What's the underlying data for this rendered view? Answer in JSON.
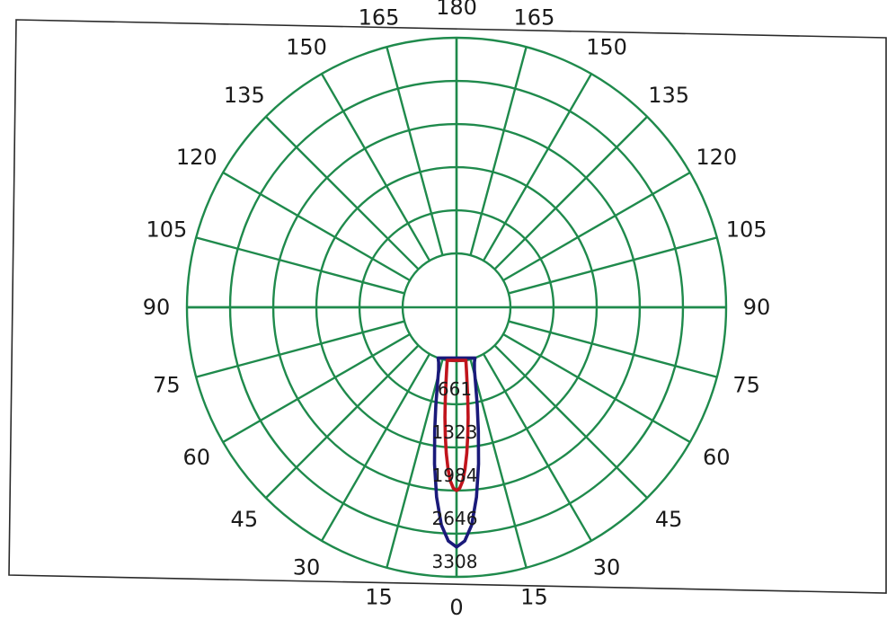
{
  "chart_data": {
    "type": "polar",
    "title": "",
    "angle_labels_left": [
      "0",
      "15",
      "30",
      "45",
      "60",
      "75",
      "90",
      "105",
      "120",
      "135",
      "150",
      "165",
      "180"
    ],
    "angle_labels_right": [
      "15",
      "30",
      "45",
      "60",
      "75",
      "90",
      "105",
      "120",
      "135",
      "150",
      "165"
    ],
    "radial_ticks": [
      "661",
      "1323",
      "1984",
      "2646",
      "3308"
    ],
    "radial_values": [
      661,
      1323,
      1984,
      2646,
      3308
    ],
    "rmax": 3308,
    "grid": true,
    "series": [
      {
        "color": "#1a1a7a",
        "angles": [
          0,
          2,
          4,
          6,
          8,
          10,
          12,
          14,
          16,
          18,
          20
        ],
        "values": [
          2850,
          2760,
          2520,
          2100,
          1600,
          1100,
          700,
          380,
          170,
          60,
          0
        ]
      },
      {
        "color": "#c0141c",
        "angles": [
          0,
          1,
          2,
          3,
          4,
          5,
          6,
          7,
          8,
          9,
          10
        ],
        "values": [
          1984,
          1950,
          1840,
          1660,
          1420,
          1150,
          870,
          590,
          330,
          140,
          0
        ]
      }
    ]
  }
}
